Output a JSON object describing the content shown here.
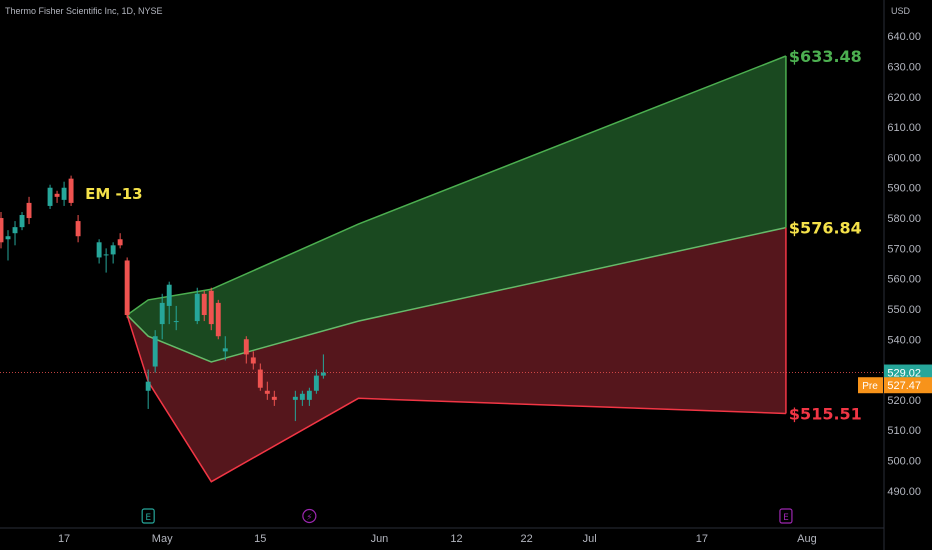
{
  "header": {
    "symbol_text": "Thermo Fisher Scientific Inc, 1D, NYSE",
    "currency": "USD"
  },
  "chart_data": {
    "type": "candlestick",
    "ylim": [
      482,
      648
    ],
    "yticks": [
      490,
      500,
      510,
      520,
      530,
      540,
      550,
      560,
      570,
      580,
      590,
      600,
      610,
      620,
      630,
      640
    ],
    "ytick_labels": [
      "490.00",
      "500.00",
      "510.00",
      "520.00",
      "530.00",
      "540.00",
      "550.00",
      "560.00",
      "570.00",
      "580.00",
      "590.00",
      "600.00",
      "610.00",
      "620.00",
      "630.00",
      "640.00"
    ],
    "x_range": [
      "2024-04-08",
      "2024-08-06"
    ],
    "x_ticks": [
      {
        "date": "2024-04-17",
        "label": "17"
      },
      {
        "date": "2024-05-01",
        "label": "May"
      },
      {
        "date": "2024-05-15",
        "label": "15"
      },
      {
        "date": "2024-06-01",
        "label": "Jun"
      },
      {
        "date": "2024-06-12",
        "label": "12"
      },
      {
        "date": "2024-06-22",
        "label": "22"
      },
      {
        "date": "2024-07-01",
        "label": "Jul"
      },
      {
        "date": "2024-07-17",
        "label": "17"
      },
      {
        "date": "2024-08-01",
        "label": "Aug"
      }
    ],
    "candles": [
      {
        "date": "2024-04-08",
        "open": 580,
        "high": 582,
        "low": 570,
        "close": 572
      },
      {
        "date": "2024-04-09",
        "open": 573,
        "high": 576,
        "low": 566,
        "close": 574
      },
      {
        "date": "2024-04-10",
        "open": 575,
        "high": 579,
        "low": 571,
        "close": 577
      },
      {
        "date": "2024-04-11",
        "open": 577,
        "high": 582,
        "low": 576,
        "close": 581
      },
      {
        "date": "2024-04-12",
        "open": 585,
        "high": 587,
        "low": 578,
        "close": 580
      },
      {
        "date": "2024-04-15",
        "open": 584,
        "high": 591,
        "low": 583,
        "close": 590
      },
      {
        "date": "2024-04-16",
        "open": 588,
        "high": 589,
        "low": 585,
        "close": 587
      },
      {
        "date": "2024-04-17",
        "open": 586,
        "high": 592,
        "low": 584,
        "close": 590
      },
      {
        "date": "2024-04-18",
        "open": 593,
        "high": 594,
        "low": 584,
        "close": 585
      },
      {
        "date": "2024-04-19",
        "open": 579,
        "high": 581,
        "low": 572,
        "close": 574
      },
      {
        "date": "2024-04-22",
        "open": 567,
        "high": 573,
        "low": 565,
        "close": 572
      },
      {
        "date": "2024-04-23",
        "open": 568,
        "high": 570,
        "low": 562,
        "close": 568
      },
      {
        "date": "2024-04-24",
        "open": 568,
        "high": 572,
        "low": 565,
        "close": 571
      },
      {
        "date": "2024-04-25",
        "open": 573,
        "high": 575,
        "low": 570,
        "close": 571
      },
      {
        "date": "2024-04-26",
        "open": 566,
        "high": 567,
        "low": 547,
        "close": 548
      },
      {
        "date": "2024-04-29",
        "open": 523,
        "high": 530,
        "low": 517,
        "close": 526
      },
      {
        "date": "2024-04-30",
        "open": 531,
        "high": 543,
        "low": 529,
        "close": 541
      },
      {
        "date": "2024-05-01",
        "open": 545,
        "high": 555,
        "low": 540,
        "close": 552
      },
      {
        "date": "2024-05-02",
        "open": 551,
        "high": 559,
        "low": 545,
        "close": 558
      },
      {
        "date": "2024-05-03",
        "open": 546,
        "high": 551,
        "low": 543,
        "close": 546
      },
      {
        "date": "2024-05-06",
        "open": 546,
        "high": 557,
        "low": 545,
        "close": 555
      },
      {
        "date": "2024-05-07",
        "open": 555,
        "high": 556,
        "low": 546,
        "close": 548
      },
      {
        "date": "2024-05-08",
        "open": 556,
        "high": 557,
        "low": 543,
        "close": 545
      },
      {
        "date": "2024-05-09",
        "open": 552,
        "high": 553,
        "low": 540,
        "close": 541
      },
      {
        "date": "2024-05-10",
        "open": 536,
        "high": 541,
        "low": 533,
        "close": 537
      },
      {
        "date": "2024-05-13",
        "open": 540,
        "high": 541,
        "low": 532,
        "close": 535
      },
      {
        "date": "2024-05-14",
        "open": 534,
        "high": 536,
        "low": 530,
        "close": 532
      },
      {
        "date": "2024-05-15",
        "open": 530,
        "high": 532,
        "low": 523,
        "close": 524
      },
      {
        "date": "2024-05-16",
        "open": 523,
        "high": 526,
        "low": 520,
        "close": 522
      },
      {
        "date": "2024-05-17",
        "open": 521,
        "high": 523,
        "low": 518,
        "close": 520
      },
      {
        "date": "2024-05-20",
        "open": 520,
        "high": 523,
        "low": 513,
        "close": 521
      },
      {
        "date": "2024-05-21",
        "open": 520,
        "high": 523,
        "low": 518,
        "close": 522
      },
      {
        "date": "2024-05-22",
        "open": 520,
        "high": 524,
        "low": 518,
        "close": 523
      },
      {
        "date": "2024-05-23",
        "open": 523,
        "high": 530,
        "low": 522,
        "close": 528
      },
      {
        "date": "2024-05-24",
        "open": 528,
        "high": 535,
        "low": 527,
        "close": 529
      }
    ],
    "bands": {
      "upper": [
        [
          "2024-04-26",
          548
        ],
        [
          "2024-04-29",
          553
        ],
        [
          "2024-05-08",
          556.5
        ],
        [
          "2024-05-29",
          578
        ],
        [
          "2024-07-29",
          633.48
        ]
      ],
      "middle": [
        [
          "2024-04-26",
          548
        ],
        [
          "2024-04-29",
          541
        ],
        [
          "2024-05-08",
          532.5
        ],
        [
          "2024-05-29",
          546
        ],
        [
          "2024-07-29",
          576.84
        ]
      ],
      "lower": [
        [
          "2024-04-26",
          548
        ],
        [
          "2024-04-29",
          526
        ],
        [
          "2024-05-08",
          493
        ],
        [
          "2024-05-29",
          520.5
        ],
        [
          "2024-07-29",
          515.51
        ]
      ]
    },
    "annotations": [
      {
        "id": "upper",
        "text": "$633.48",
        "value": 633.48,
        "color": "#4caf50"
      },
      {
        "id": "middle",
        "text": "$576.84",
        "value": 576.84,
        "color": "#f5e24a"
      },
      {
        "id": "lower",
        "text": "$515.51",
        "value": 515.51,
        "color": "#f23645"
      },
      {
        "id": "em",
        "text": "EM -13",
        "date": "2024-04-20",
        "value": 588,
        "color": "#f5e24a"
      }
    ],
    "last_price": {
      "label": "529.02",
      "value": 529.02,
      "color": "#26a69a"
    },
    "pre_market": {
      "tag": "Pre",
      "label": "527.47",
      "value": 527.47,
      "color": "#f7931a"
    },
    "event_markers": [
      {
        "date": "2024-04-29",
        "letter": "E",
        "color": "#26a69a"
      },
      {
        "date": "2024-05-22",
        "letter": "⚡",
        "color": "#9c27b0"
      },
      {
        "date": "2024-07-29",
        "letter": "E",
        "color": "#9c27b0"
      }
    ],
    "colors": {
      "up": "#26a69a",
      "down": "#ef5350",
      "upper_fill": "#1b4d22",
      "lower_fill": "#5a171d",
      "upper_line": "#4caf50",
      "middle_line": "#66bb6a",
      "lower_line": "#f23645"
    }
  }
}
